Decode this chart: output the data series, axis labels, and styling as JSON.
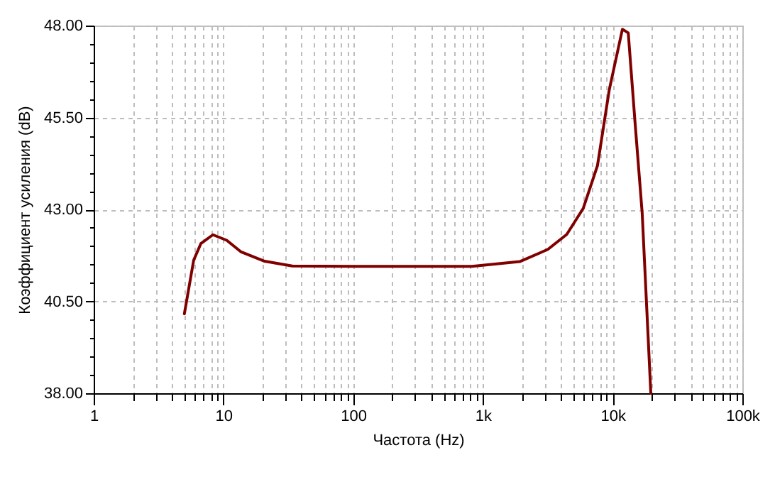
{
  "chart_data": {
    "type": "line",
    "xlabel": "Частота (Hz)",
    "ylabel": "Коэффициент усиления (dB)",
    "log": "x",
    "grid": true,
    "line_style": "solid",
    "marker": "none",
    "xlim": [
      1,
      100000
    ],
    "ylim": [
      38,
      48
    ],
    "xticks": [
      1,
      {
        "value": 2,
        "label": null
      },
      {
        "value": 3,
        "label": null
      },
      {
        "value": 4,
        "label": null
      },
      {
        "value": 5,
        "label": null
      },
      {
        "value": 6,
        "label": null
      },
      {
        "value": 7,
        "label": null
      },
      {
        "value": 8,
        "label": null
      },
      {
        "value": 9,
        "label": null
      },
      10,
      {
        "value": 20,
        "label": null
      },
      {
        "value": 30,
        "label": null
      },
      {
        "value": 40,
        "label": null
      },
      {
        "value": 50,
        "label": null
      },
      {
        "value": 60,
        "label": null
      },
      {
        "value": 70,
        "label": null
      },
      {
        "value": 80,
        "label": null
      },
      {
        "value": 90,
        "label": null
      },
      100,
      {
        "value": 200,
        "label": null
      },
      {
        "value": 300,
        "label": null
      },
      {
        "value": 400,
        "label": null
      },
      {
        "value": 500,
        "label": null
      },
      {
        "value": 600,
        "label": null
      },
      {
        "value": 700,
        "label": null
      },
      {
        "value": 800,
        "label": null
      },
      {
        "value": 900,
        "label": null
      },
      {
        "value": 1000,
        "label": "1k"
      },
      {
        "value": 2000,
        "label": null
      },
      {
        "value": 3000,
        "label": null
      },
      {
        "value": 4000,
        "label": null
      },
      {
        "value": 5000,
        "label": null
      },
      {
        "value": 6000,
        "label": null
      },
      {
        "value": 7000,
        "label": null
      },
      {
        "value": 8000,
        "label": null
      },
      {
        "value": 9000,
        "label": null
      },
      {
        "value": 10000,
        "label": "10k"
      },
      {
        "value": 20000,
        "label": null
      },
      {
        "value": 30000,
        "label": null
      },
      {
        "value": 40000,
        "label": null
      },
      {
        "value": 50000,
        "label": null
      },
      {
        "value": 60000,
        "label": null
      },
      {
        "value": 70000,
        "label": null
      },
      {
        "value": 80000,
        "label": null
      },
      {
        "value": 90000,
        "label": null
      },
      {
        "value": 100000,
        "label": "100k"
      }
    ],
    "yticks": [
      {
        "value": 38,
        "label": "38.00"
      },
      {
        "value": 38.5,
        "label": null
      },
      {
        "value": 39,
        "label": null
      },
      {
        "value": 39.5,
        "label": null
      },
      {
        "value": 40,
        "label": null
      },
      {
        "value": 40.5,
        "label": "40.50"
      },
      {
        "value": 41,
        "label": null
      },
      {
        "value": 41.5,
        "label": null
      },
      {
        "value": 42,
        "label": null
      },
      {
        "value": 42.5,
        "label": null
      },
      {
        "value": 43,
        "label": "43.00"
      },
      {
        "value": 43.5,
        "label": null
      },
      {
        "value": 44,
        "label": null
      },
      {
        "value": 44.5,
        "label": null
      },
      {
        "value": 45,
        "label": null
      },
      {
        "value": 45.5,
        "label": "45.50"
      },
      {
        "value": 46,
        "label": null
      },
      {
        "value": 46.5,
        "label": null
      },
      {
        "value": 47,
        "label": null
      },
      {
        "value": 47.5,
        "label": null
      },
      {
        "value": 48,
        "label": "48.00"
      }
    ],
    "series": [
      {
        "color": "#800000",
        "x": [
          5.0,
          5.9,
          6.7,
          8.3,
          10.6,
          13.6,
          20.8,
          34,
          100,
          300,
          822,
          1920,
          3160,
          4430,
          5940,
          7640,
          9420,
          11900,
          13200,
          14900,
          16900,
          19700
        ],
        "values": [
          40.16,
          41.62,
          42.07,
          42.31,
          42.16,
          41.85,
          41.59,
          41.46,
          41.45,
          41.45,
          41.45,
          41.58,
          41.91,
          42.32,
          43.03,
          44.19,
          46.25,
          47.9,
          47.8,
          45.35,
          42.9,
          38.0
        ]
      }
    ]
  }
}
